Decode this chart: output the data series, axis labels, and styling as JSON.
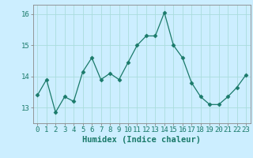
{
  "x": [
    0,
    1,
    2,
    3,
    4,
    5,
    6,
    7,
    8,
    9,
    10,
    11,
    12,
    13,
    14,
    15,
    16,
    17,
    18,
    19,
    20,
    21,
    22,
    23
  ],
  "y": [
    13.4,
    13.9,
    12.85,
    13.35,
    13.2,
    14.15,
    14.6,
    13.9,
    14.1,
    13.9,
    14.45,
    15.0,
    15.3,
    15.3,
    16.05,
    15.0,
    14.6,
    13.8,
    13.35,
    13.1,
    13.1,
    13.35,
    13.65,
    14.05
  ],
  "line_color": "#1a7a6a",
  "marker": "D",
  "marker_size": 2.5,
  "bg_color": "#cceeff",
  "grid_color": "#aadddd",
  "xlabel": "Humidex (Indice chaleur)",
  "ylim": [
    12.5,
    16.3
  ],
  "xlim": [
    -0.5,
    23.5
  ],
  "yticks": [
    13,
    14,
    15,
    16
  ],
  "xticks": [
    0,
    1,
    2,
    3,
    4,
    5,
    6,
    7,
    8,
    9,
    10,
    11,
    12,
    13,
    14,
    15,
    16,
    17,
    18,
    19,
    20,
    21,
    22,
    23
  ],
  "tick_color": "#1a7a6a",
  "label_color": "#1a7a6a",
  "axis_color": "#888888",
  "font_size": 6.5,
  "xlabel_fontsize": 7.5
}
